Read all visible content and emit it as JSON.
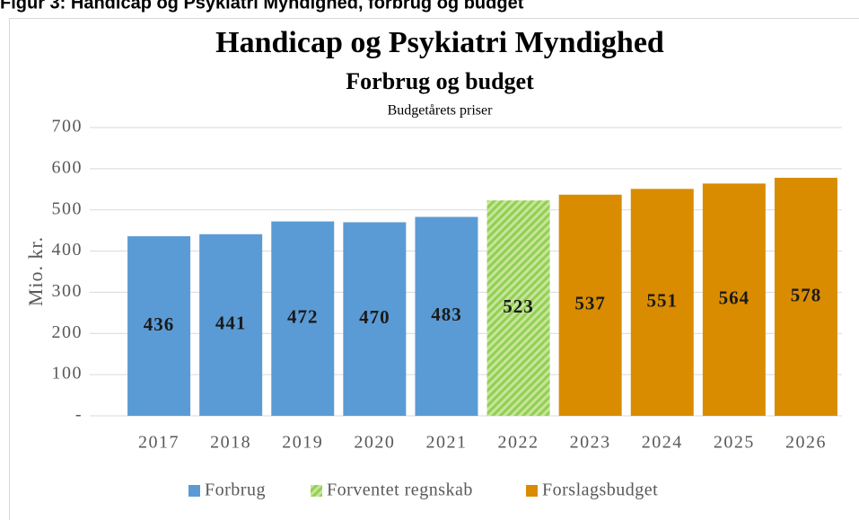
{
  "heading": "Figur 3: Handicap og Psykiatri Myndighed, forbrug og budget",
  "chart_data": {
    "type": "bar",
    "title": "Handicap og Psykiatri Myndighed",
    "subtitle": "Forbrug og budget",
    "note": "Budgetårets priser",
    "y_label": "Mio. kr.",
    "categories": [
      "2017",
      "2018",
      "2019",
      "2020",
      "2021",
      "2022",
      "2023",
      "2024",
      "2025",
      "2026"
    ],
    "series": [
      {
        "name": "Forbrug",
        "color": "#5b9bd5",
        "values": [
          436,
          441,
          472,
          470,
          483,
          null,
          null,
          null,
          null,
          null
        ]
      },
      {
        "name": "Forventet regnskab",
        "color": "#92d050",
        "fill_pattern": "diagonal-stripes",
        "values": [
          null,
          null,
          null,
          null,
          null,
          523,
          null,
          null,
          null,
          null
        ]
      },
      {
        "name": "Forslagsbudget",
        "color": "#d98c00",
        "values": [
          null,
          null,
          null,
          null,
          null,
          null,
          537,
          551,
          564,
          578
        ]
      }
    ],
    "ylim": [
      0,
      700
    ],
    "yticks": [
      {
        "value": 0,
        "label": "-"
      },
      100,
      200,
      300,
      400,
      500,
      600,
      700
    ],
    "grid": true,
    "legend": "bottom"
  }
}
